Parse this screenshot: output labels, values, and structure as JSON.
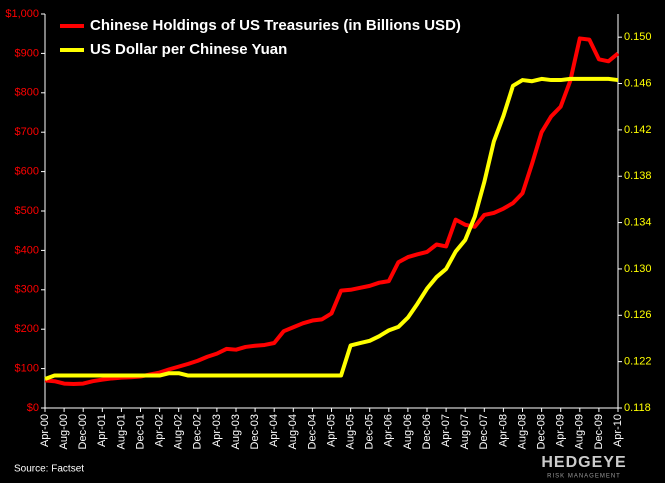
{
  "chart_data": {
    "type": "line",
    "categories": [
      "Apr-00",
      null,
      "Aug-00",
      null,
      "Dec-00",
      null,
      "Apr-01",
      null,
      "Aug-01",
      null,
      "Dec-01",
      null,
      "Apr-02",
      null,
      "Aug-02",
      null,
      "Dec-02",
      null,
      "Apr-03",
      null,
      "Aug-03",
      null,
      "Dec-03",
      null,
      "Apr-04",
      null,
      "Aug-04",
      null,
      "Dec-04",
      null,
      "Apr-05",
      null,
      "Aug-05",
      null,
      "Dec-05",
      null,
      "Apr-06",
      null,
      "Aug-06",
      null,
      "Dec-06",
      null,
      "Apr-07",
      null,
      "Aug-07",
      null,
      "Dec-07",
      null,
      "Apr-08",
      null,
      "Aug-08",
      null,
      "Dec-08",
      null,
      "Apr-09",
      null,
      "Aug-09",
      null,
      "Dec-09",
      null,
      "Apr-10"
    ],
    "series": [
      {
        "name": "Chinese Holdings of US Treasuries (in Billions USD)",
        "color": "#ff0000",
        "values": [
          70,
          68,
          62,
          61,
          62,
          68,
          72,
          75,
          77,
          78,
          80,
          85,
          90,
          98,
          105,
          112,
          120,
          130,
          138,
          150,
          148,
          155,
          158,
          160,
          165,
          195,
          205,
          215,
          222,
          225,
          240,
          298,
          300,
          305,
          310,
          318,
          322,
          370,
          383,
          390,
          396,
          415,
          410,
          478,
          465,
          460,
          490,
          495,
          506,
          520,
          545,
          620,
          700,
          740,
          765,
          830,
          938,
          935,
          885,
          880,
          900
        ]
      },
      {
        "name": "US Dollar per Chinese Yuan",
        "color": "#ffff00",
        "axis": "y2",
        "values": [
          0.1205,
          0.1208,
          0.1208,
          0.1208,
          0.1208,
          0.1208,
          0.1208,
          0.1208,
          0.1208,
          0.1208,
          0.1208,
          0.1208,
          0.1208,
          0.121,
          0.121,
          0.1208,
          0.1208,
          0.1208,
          0.1208,
          0.1208,
          0.1208,
          0.1208,
          0.1208,
          0.1208,
          0.1208,
          0.1208,
          0.1208,
          0.1208,
          0.1208,
          0.1208,
          0.1208,
          0.1208,
          0.1234,
          0.1236,
          0.1238,
          0.1242,
          0.1247,
          0.125,
          0.1258,
          0.127,
          0.1283,
          0.1293,
          0.13,
          0.1315,
          0.1325,
          0.1345,
          0.1375,
          0.141,
          0.1432,
          0.1458,
          0.1463,
          0.1462,
          0.1464,
          0.1463,
          0.1463,
          0.1464,
          0.1464,
          0.1464,
          0.1464,
          0.1464,
          0.1463
        ]
      }
    ],
    "ylim": [
      0,
      1000
    ],
    "yticks": [
      {
        "value": 0,
        "label": "$0"
      },
      {
        "value": 100,
        "label": "$100"
      },
      {
        "value": 200,
        "label": "$200"
      },
      {
        "value": 300,
        "label": "$300"
      },
      {
        "value": 400,
        "label": "$400"
      },
      {
        "value": 500,
        "label": "$500"
      },
      {
        "value": 600,
        "label": "$600"
      },
      {
        "value": 700,
        "label": "$700"
      },
      {
        "value": 800,
        "label": "$800"
      },
      {
        "value": 900,
        "label": "$900"
      },
      {
        "value": 1000,
        "label": "$1,000"
      }
    ],
    "y2lim": [
      0.118,
      0.152
    ],
    "y2ticks": [
      0.118,
      0.122,
      0.126,
      {
        "value": 0.13,
        "label": "0.130"
      },
      0.134,
      0.138,
      0.142,
      0.146,
      {
        "value": 0.15,
        "label": "0.150"
      }
    ],
    "legend": "upper left",
    "source": "Source: Factset",
    "logo": "HEDGEYE",
    "logo_tagline": "RISK MANAGEMENT"
  }
}
